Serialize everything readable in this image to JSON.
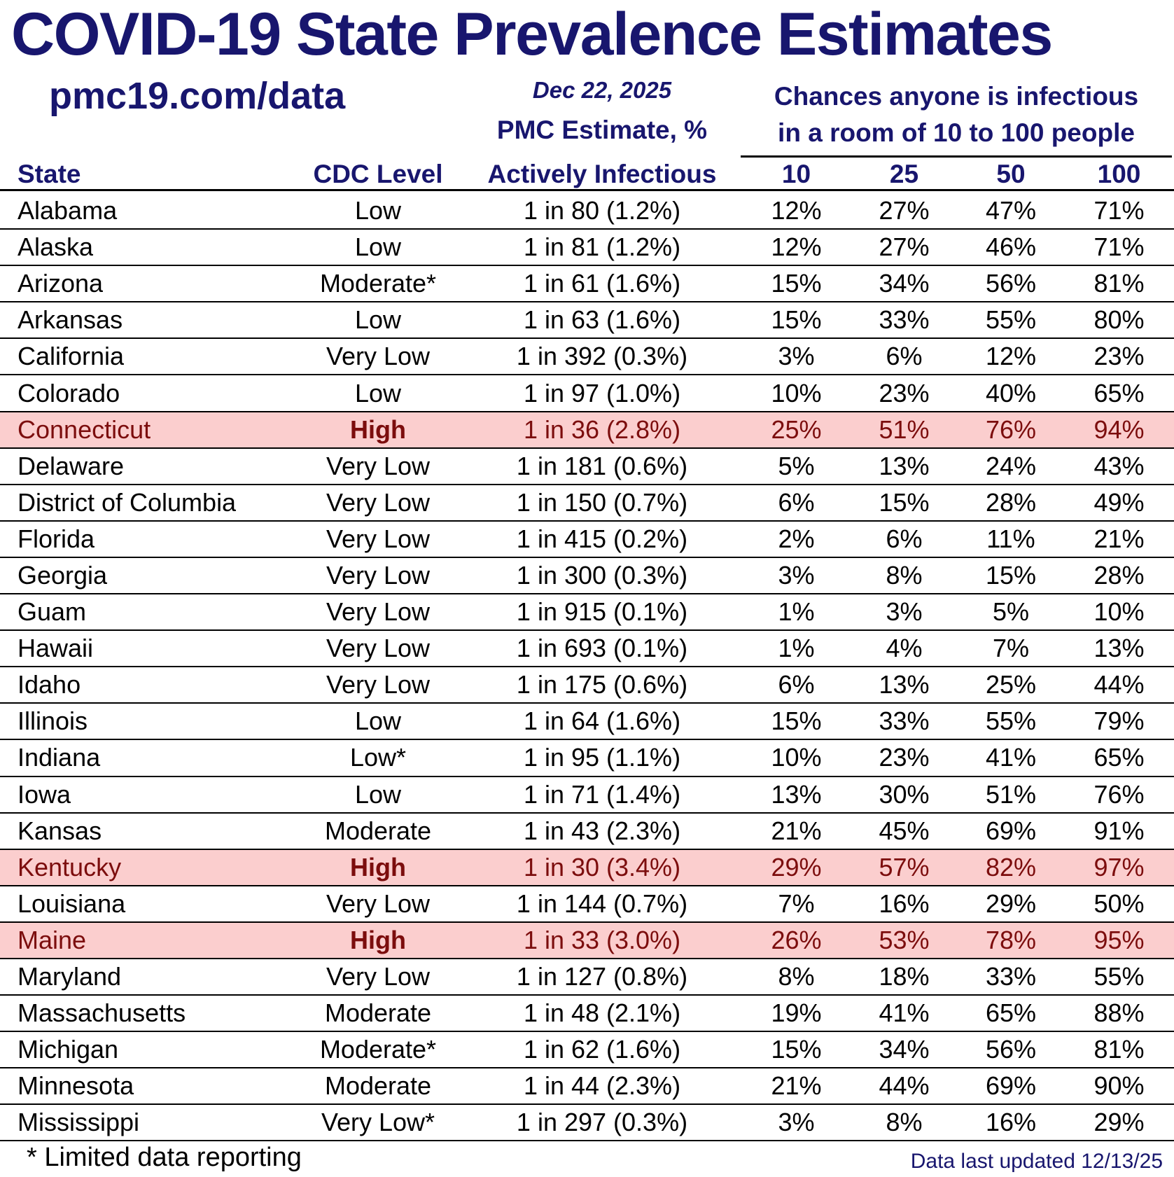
{
  "page": {
    "title": "COVID-19 State Prevalence Estimates",
    "site": "pmc19.com/data",
    "date": "Dec 22, 2025"
  },
  "table_header": {
    "pmc_label_line1": "PMC Estimate, %",
    "pmc_label_line2": "Actively Infectious",
    "chances_line1": "Chances anyone is infectious",
    "chances_line2": "in a room of 10 to 100 people",
    "state_col": "State",
    "cdc_col": "CDC Level",
    "room_sizes": [
      "10",
      "25",
      "50",
      "100"
    ]
  },
  "footer": {
    "note": "* Limited data reporting",
    "updated": "Data last updated 12/13/25"
  },
  "colors": {
    "navy": "#18166E",
    "highlight_bg": "#FBCECE",
    "highlight_text": "#7C0D0D",
    "row_text": "#000000"
  },
  "chart_data": {
    "type": "table",
    "title": "COVID-19 State Prevalence Estimates",
    "columns": [
      "State",
      "CDC Level",
      "PMC Estimate, % Actively Infectious",
      "10",
      "25",
      "50",
      "100"
    ],
    "highlighted_states": [
      "Connecticut",
      "Kentucky",
      "Maine"
    ],
    "rows": [
      {
        "state": "Alabama",
        "cdc_level": "Low",
        "pmc_estimate": "1 in 80 (1.2%)",
        "chance_10": "12%",
        "chance_25": "27%",
        "chance_50": "47%",
        "chance_100": "71%",
        "highlight": false
      },
      {
        "state": "Alaska",
        "cdc_level": "Low",
        "pmc_estimate": "1 in 81 (1.2%)",
        "chance_10": "12%",
        "chance_25": "27%",
        "chance_50": "46%",
        "chance_100": "71%",
        "highlight": false
      },
      {
        "state": "Arizona",
        "cdc_level": "Moderate*",
        "pmc_estimate": "1 in 61 (1.6%)",
        "chance_10": "15%",
        "chance_25": "34%",
        "chance_50": "56%",
        "chance_100": "81%",
        "highlight": false
      },
      {
        "state": "Arkansas",
        "cdc_level": "Low",
        "pmc_estimate": "1 in 63 (1.6%)",
        "chance_10": "15%",
        "chance_25": "33%",
        "chance_50": "55%",
        "chance_100": "80%",
        "highlight": false
      },
      {
        "state": "California",
        "cdc_level": "Very Low",
        "pmc_estimate": "1 in 392 (0.3%)",
        "chance_10": "3%",
        "chance_25": "6%",
        "chance_50": "12%",
        "chance_100": "23%",
        "highlight": false
      },
      {
        "state": "Colorado",
        "cdc_level": "Low",
        "pmc_estimate": "1 in 97 (1.0%)",
        "chance_10": "10%",
        "chance_25": "23%",
        "chance_50": "40%",
        "chance_100": "65%",
        "highlight": false
      },
      {
        "state": "Connecticut",
        "cdc_level": "High",
        "pmc_estimate": "1 in 36 (2.8%)",
        "chance_10": "25%",
        "chance_25": "51%",
        "chance_50": "76%",
        "chance_100": "94%",
        "highlight": true
      },
      {
        "state": "Delaware",
        "cdc_level": "Very Low",
        "pmc_estimate": "1 in 181 (0.6%)",
        "chance_10": "5%",
        "chance_25": "13%",
        "chance_50": "24%",
        "chance_100": "43%",
        "highlight": false
      },
      {
        "state": "District of Columbia",
        "cdc_level": "Very Low",
        "pmc_estimate": "1 in 150 (0.7%)",
        "chance_10": "6%",
        "chance_25": "15%",
        "chance_50": "28%",
        "chance_100": "49%",
        "highlight": false
      },
      {
        "state": "Florida",
        "cdc_level": "Very Low",
        "pmc_estimate": "1 in 415 (0.2%)",
        "chance_10": "2%",
        "chance_25": "6%",
        "chance_50": "11%",
        "chance_100": "21%",
        "highlight": false
      },
      {
        "state": "Georgia",
        "cdc_level": "Very Low",
        "pmc_estimate": "1 in 300 (0.3%)",
        "chance_10": "3%",
        "chance_25": "8%",
        "chance_50": "15%",
        "chance_100": "28%",
        "highlight": false
      },
      {
        "state": "Guam",
        "cdc_level": "Very Low",
        "pmc_estimate": "1 in 915 (0.1%)",
        "chance_10": "1%",
        "chance_25": "3%",
        "chance_50": "5%",
        "chance_100": "10%",
        "highlight": false
      },
      {
        "state": "Hawaii",
        "cdc_level": "Very Low",
        "pmc_estimate": "1 in 693 (0.1%)",
        "chance_10": "1%",
        "chance_25": "4%",
        "chance_50": "7%",
        "chance_100": "13%",
        "highlight": false
      },
      {
        "state": "Idaho",
        "cdc_level": "Very Low",
        "pmc_estimate": "1 in 175 (0.6%)",
        "chance_10": "6%",
        "chance_25": "13%",
        "chance_50": "25%",
        "chance_100": "44%",
        "highlight": false
      },
      {
        "state": "Illinois",
        "cdc_level": "Low",
        "pmc_estimate": "1 in 64 (1.6%)",
        "chance_10": "15%",
        "chance_25": "33%",
        "chance_50": "55%",
        "chance_100": "79%",
        "highlight": false
      },
      {
        "state": "Indiana",
        "cdc_level": "Low*",
        "pmc_estimate": "1 in 95 (1.1%)",
        "chance_10": "10%",
        "chance_25": "23%",
        "chance_50": "41%",
        "chance_100": "65%",
        "highlight": false
      },
      {
        "state": "Iowa",
        "cdc_level": "Low",
        "pmc_estimate": "1 in 71 (1.4%)",
        "chance_10": "13%",
        "chance_25": "30%",
        "chance_50": "51%",
        "chance_100": "76%",
        "highlight": false
      },
      {
        "state": "Kansas",
        "cdc_level": "Moderate",
        "pmc_estimate": "1 in 43 (2.3%)",
        "chance_10": "21%",
        "chance_25": "45%",
        "chance_50": "69%",
        "chance_100": "91%",
        "highlight": false
      },
      {
        "state": "Kentucky",
        "cdc_level": "High",
        "pmc_estimate": "1 in 30 (3.4%)",
        "chance_10": "29%",
        "chance_25": "57%",
        "chance_50": "82%",
        "chance_100": "97%",
        "highlight": true
      },
      {
        "state": "Louisiana",
        "cdc_level": "Very Low",
        "pmc_estimate": "1 in 144 (0.7%)",
        "chance_10": "7%",
        "chance_25": "16%",
        "chance_50": "29%",
        "chance_100": "50%",
        "highlight": false
      },
      {
        "state": "Maine",
        "cdc_level": "High",
        "pmc_estimate": "1 in 33 (3.0%)",
        "chance_10": "26%",
        "chance_25": "53%",
        "chance_50": "78%",
        "chance_100": "95%",
        "highlight": true
      },
      {
        "state": "Maryland",
        "cdc_level": "Very Low",
        "pmc_estimate": "1 in 127 (0.8%)",
        "chance_10": "8%",
        "chance_25": "18%",
        "chance_50": "33%",
        "chance_100": "55%",
        "highlight": false
      },
      {
        "state": "Massachusetts",
        "cdc_level": "Moderate",
        "pmc_estimate": "1 in 48 (2.1%)",
        "chance_10": "19%",
        "chance_25": "41%",
        "chance_50": "65%",
        "chance_100": "88%",
        "highlight": false
      },
      {
        "state": "Michigan",
        "cdc_level": "Moderate*",
        "pmc_estimate": "1 in 62 (1.6%)",
        "chance_10": "15%",
        "chance_25": "34%",
        "chance_50": "56%",
        "chance_100": "81%",
        "highlight": false
      },
      {
        "state": "Minnesota",
        "cdc_level": "Moderate",
        "pmc_estimate": "1 in 44 (2.3%)",
        "chance_10": "21%",
        "chance_25": "44%",
        "chance_50": "69%",
        "chance_100": "90%",
        "highlight": false
      },
      {
        "state": "Mississippi",
        "cdc_level": "Very Low*",
        "pmc_estimate": "1 in 297 (0.3%)",
        "chance_10": "3%",
        "chance_25": "8%",
        "chance_50": "16%",
        "chance_100": "29%",
        "highlight": false
      }
    ]
  }
}
